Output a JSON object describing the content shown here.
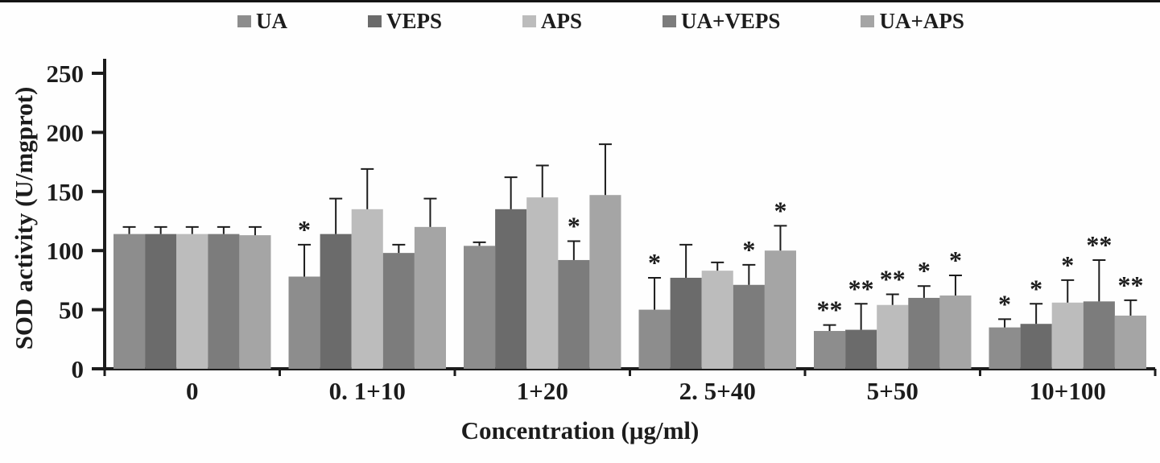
{
  "chart_data": {
    "type": "bar",
    "title": "",
    "xlabel": "Concentration (μg/ml)",
    "ylabel": "SOD activity (U/mgprot)",
    "ylim": [
      0,
      250
    ],
    "ytick_step": 50,
    "grid": false,
    "legend_position": "top",
    "error_bars": "upper",
    "axis_color": "#1c1c1c",
    "categories": [
      "0",
      "0. 1+10",
      "1+20",
      "2. 5+40",
      "5+50",
      "10+100"
    ],
    "series": [
      {
        "name": "UA",
        "color": "#8d8d8d",
        "values": [
          114,
          78,
          104,
          50,
          32,
          35
        ],
        "errors": [
          6,
          27,
          3,
          27,
          5,
          7
        ],
        "annotations": [
          "",
          "*",
          "",
          "*",
          "**",
          "*"
        ]
      },
      {
        "name": "VEPS",
        "color": "#6b6b6b",
        "values": [
          114,
          114,
          135,
          77,
          33,
          38
        ],
        "errors": [
          6,
          30,
          27,
          28,
          22,
          17
        ],
        "annotations": [
          "",
          "",
          "",
          "",
          "**",
          "*"
        ]
      },
      {
        "name": "APS",
        "color": "#bcbcbc",
        "values": [
          114,
          135,
          145,
          83,
          54,
          56
        ],
        "errors": [
          6,
          34,
          27,
          7,
          9,
          19
        ],
        "annotations": [
          "",
          "",
          "",
          "",
          "**",
          "*"
        ]
      },
      {
        "name": "UA+VEPS",
        "color": "#7c7c7c",
        "values": [
          114,
          98,
          92,
          71,
          60,
          57
        ],
        "errors": [
          6,
          7,
          16,
          17,
          10,
          35
        ],
        "annotations": [
          "",
          "",
          "*",
          "*",
          "*",
          "**"
        ]
      },
      {
        "name": "UA+APS",
        "color": "#a5a5a5",
        "values": [
          113,
          120,
          147,
          100,
          62,
          45
        ],
        "errors": [
          7,
          24,
          43,
          21,
          17,
          13
        ],
        "annotations": [
          "",
          "",
          "",
          "*",
          "*",
          "**"
        ]
      }
    ]
  }
}
